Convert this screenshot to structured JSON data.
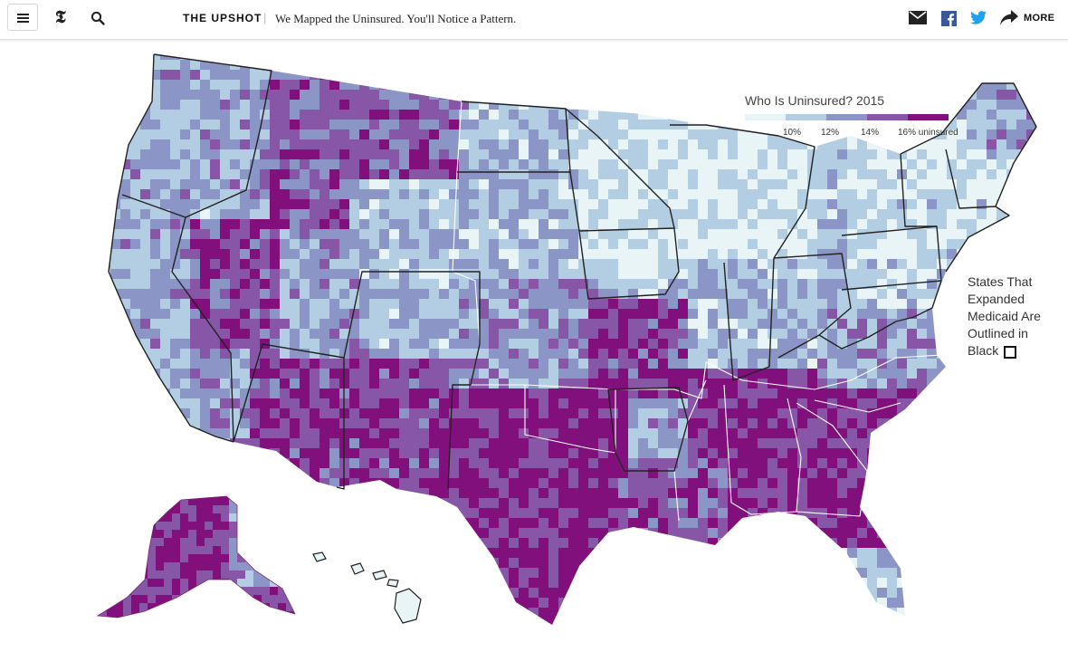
{
  "header": {
    "menu_icon": "hamburger-menu-icon",
    "logo": "𝕿",
    "search_icon": "search-icon",
    "section_label": "THE UPSHOT",
    "separator": "|",
    "headline": "We Mapped the Uninsured. You'll Notice a Pattern.",
    "share": {
      "email_icon": "envelope-icon",
      "facebook_icon": "facebook-icon",
      "twitter_icon": "twitter-icon",
      "more_icon": "share-arrow-icon",
      "more_label": "MORE"
    }
  },
  "legend": {
    "title": "Who Is Uninsured? 2015",
    "colors": [
      "#e8f4f6",
      "#b3cde3",
      "#8c96c6",
      "#8856a7",
      "#810f7c"
    ],
    "ticks": [
      "10%",
      "12%",
      "14%",
      "16% uninsured"
    ]
  },
  "note": {
    "text": "States That Expanded Medicaid Are Outlined in Black"
  }
}
